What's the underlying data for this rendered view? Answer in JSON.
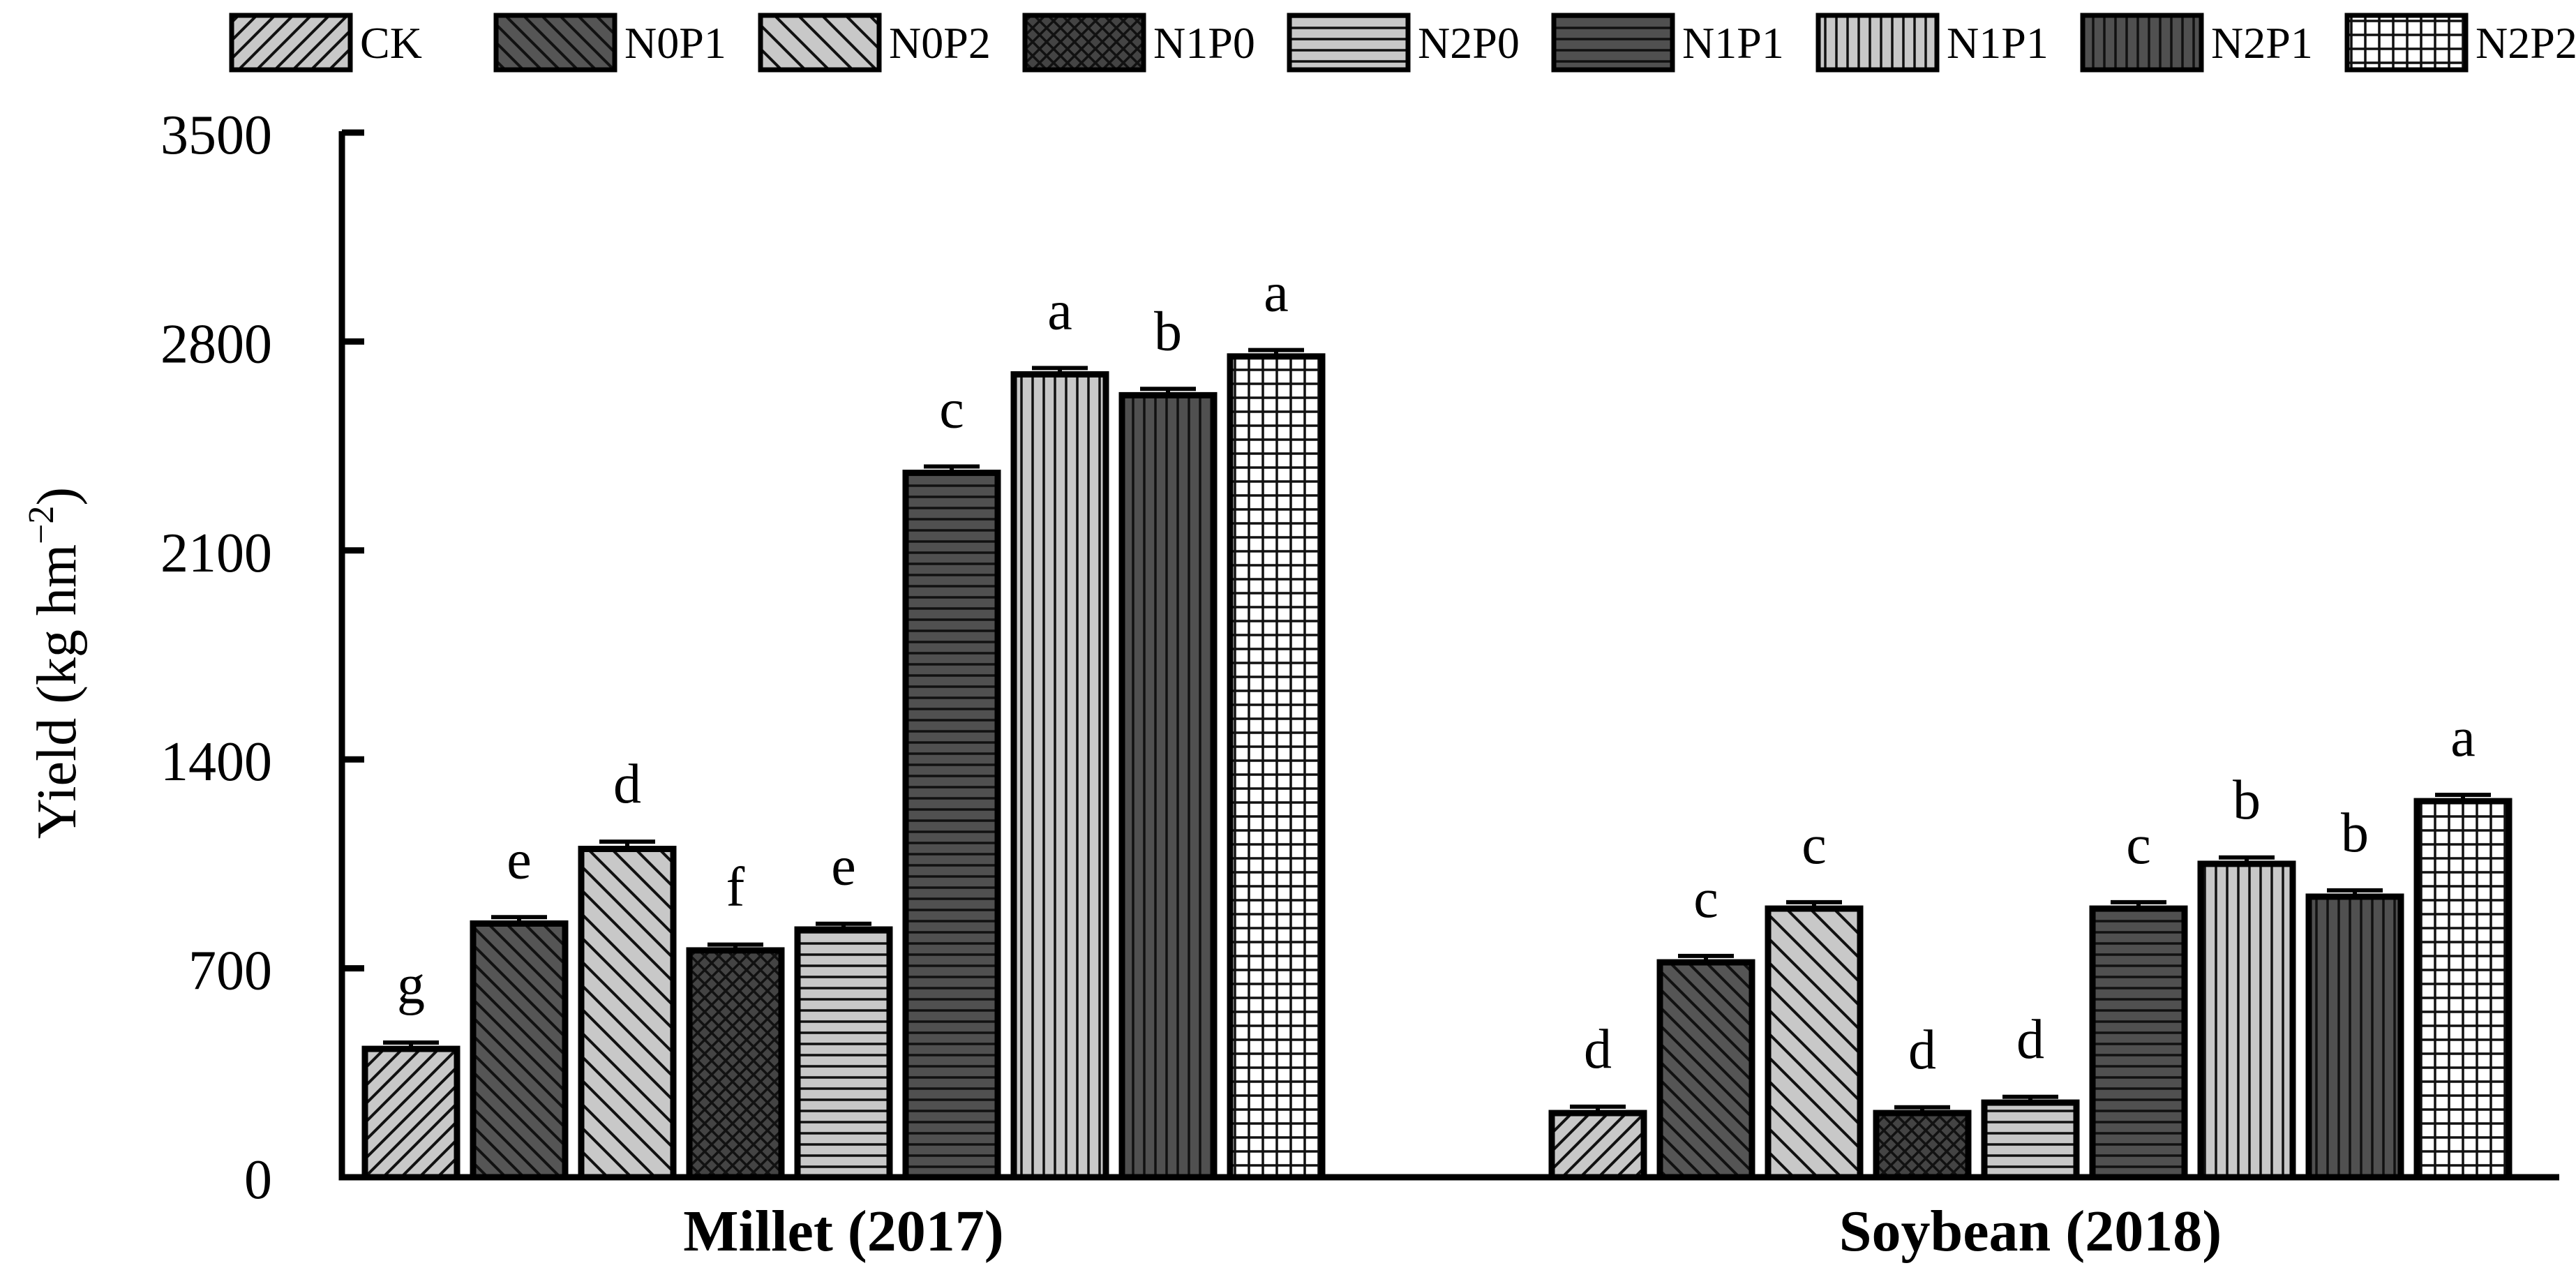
{
  "chart_data": {
    "type": "bar",
    "ylabel": "Yield (kg hm",
    "ylabel_superscript": "−2",
    "ylabel_close": ")",
    "ylim": [
      0,
      3500
    ],
    "yticks": [
      0,
      700,
      1400,
      2100,
      2800,
      3500
    ],
    "grid": false,
    "legend_position": "top",
    "groups": [
      "Millet (2017)",
      "Soybean (2018)"
    ],
    "series": [
      {
        "name": "CK",
        "values": [
          430,
          215
        ],
        "errors": [
          12,
          12
        ],
        "letters": [
          "g",
          "d"
        ],
        "pattern": "diag-up",
        "fill": "#c8c8c8"
      },
      {
        "name": "N0P1",
        "values": [
          850,
          720
        ],
        "errors": [
          12,
          12
        ],
        "letters": [
          "e",
          "c"
        ],
        "pattern": "diag-down",
        "fill": "#555555"
      },
      {
        "name": "N0P2",
        "values": [
          1100,
          900
        ],
        "errors": [
          15,
          12
        ],
        "letters": [
          "d",
          "c"
        ],
        "pattern": "diag-down-wide",
        "fill": "#c8c8c8"
      },
      {
        "name": "N1P0",
        "values": [
          760,
          215
        ],
        "errors": [
          10,
          10
        ],
        "letters": [
          "f",
          "d"
        ],
        "pattern": "cross",
        "fill": "#444444"
      },
      {
        "name": "N2P0",
        "values": [
          830,
          250
        ],
        "errors": [
          10,
          10
        ],
        "letters": [
          "e",
          "d"
        ],
        "pattern": "horizontal",
        "fill": "#c8c8c8"
      },
      {
        "name": "N1P1",
        "values": [
          2360,
          900
        ],
        "errors": [
          12,
          12
        ],
        "letters": [
          "c",
          "c"
        ],
        "pattern": "horizontal",
        "fill": "#505050"
      },
      {
        "name": "N1P1",
        "values": [
          2690,
          1050
        ],
        "errors": [
          12,
          12
        ],
        "letters": [
          "a",
          "b"
        ],
        "pattern": "vertical",
        "fill": "#c8c8c8"
      },
      {
        "name": "N2P1",
        "values": [
          2620,
          940
        ],
        "errors": [
          12,
          12
        ],
        "letters": [
          "b",
          "b"
        ],
        "pattern": "vertical",
        "fill": "#505050"
      },
      {
        "name": "N2P2",
        "values": [
          2750,
          1260
        ],
        "errors": [
          12,
          12
        ],
        "letters": [
          "a",
          "a"
        ],
        "pattern": "grid",
        "fill": "#ffffff"
      }
    ]
  }
}
